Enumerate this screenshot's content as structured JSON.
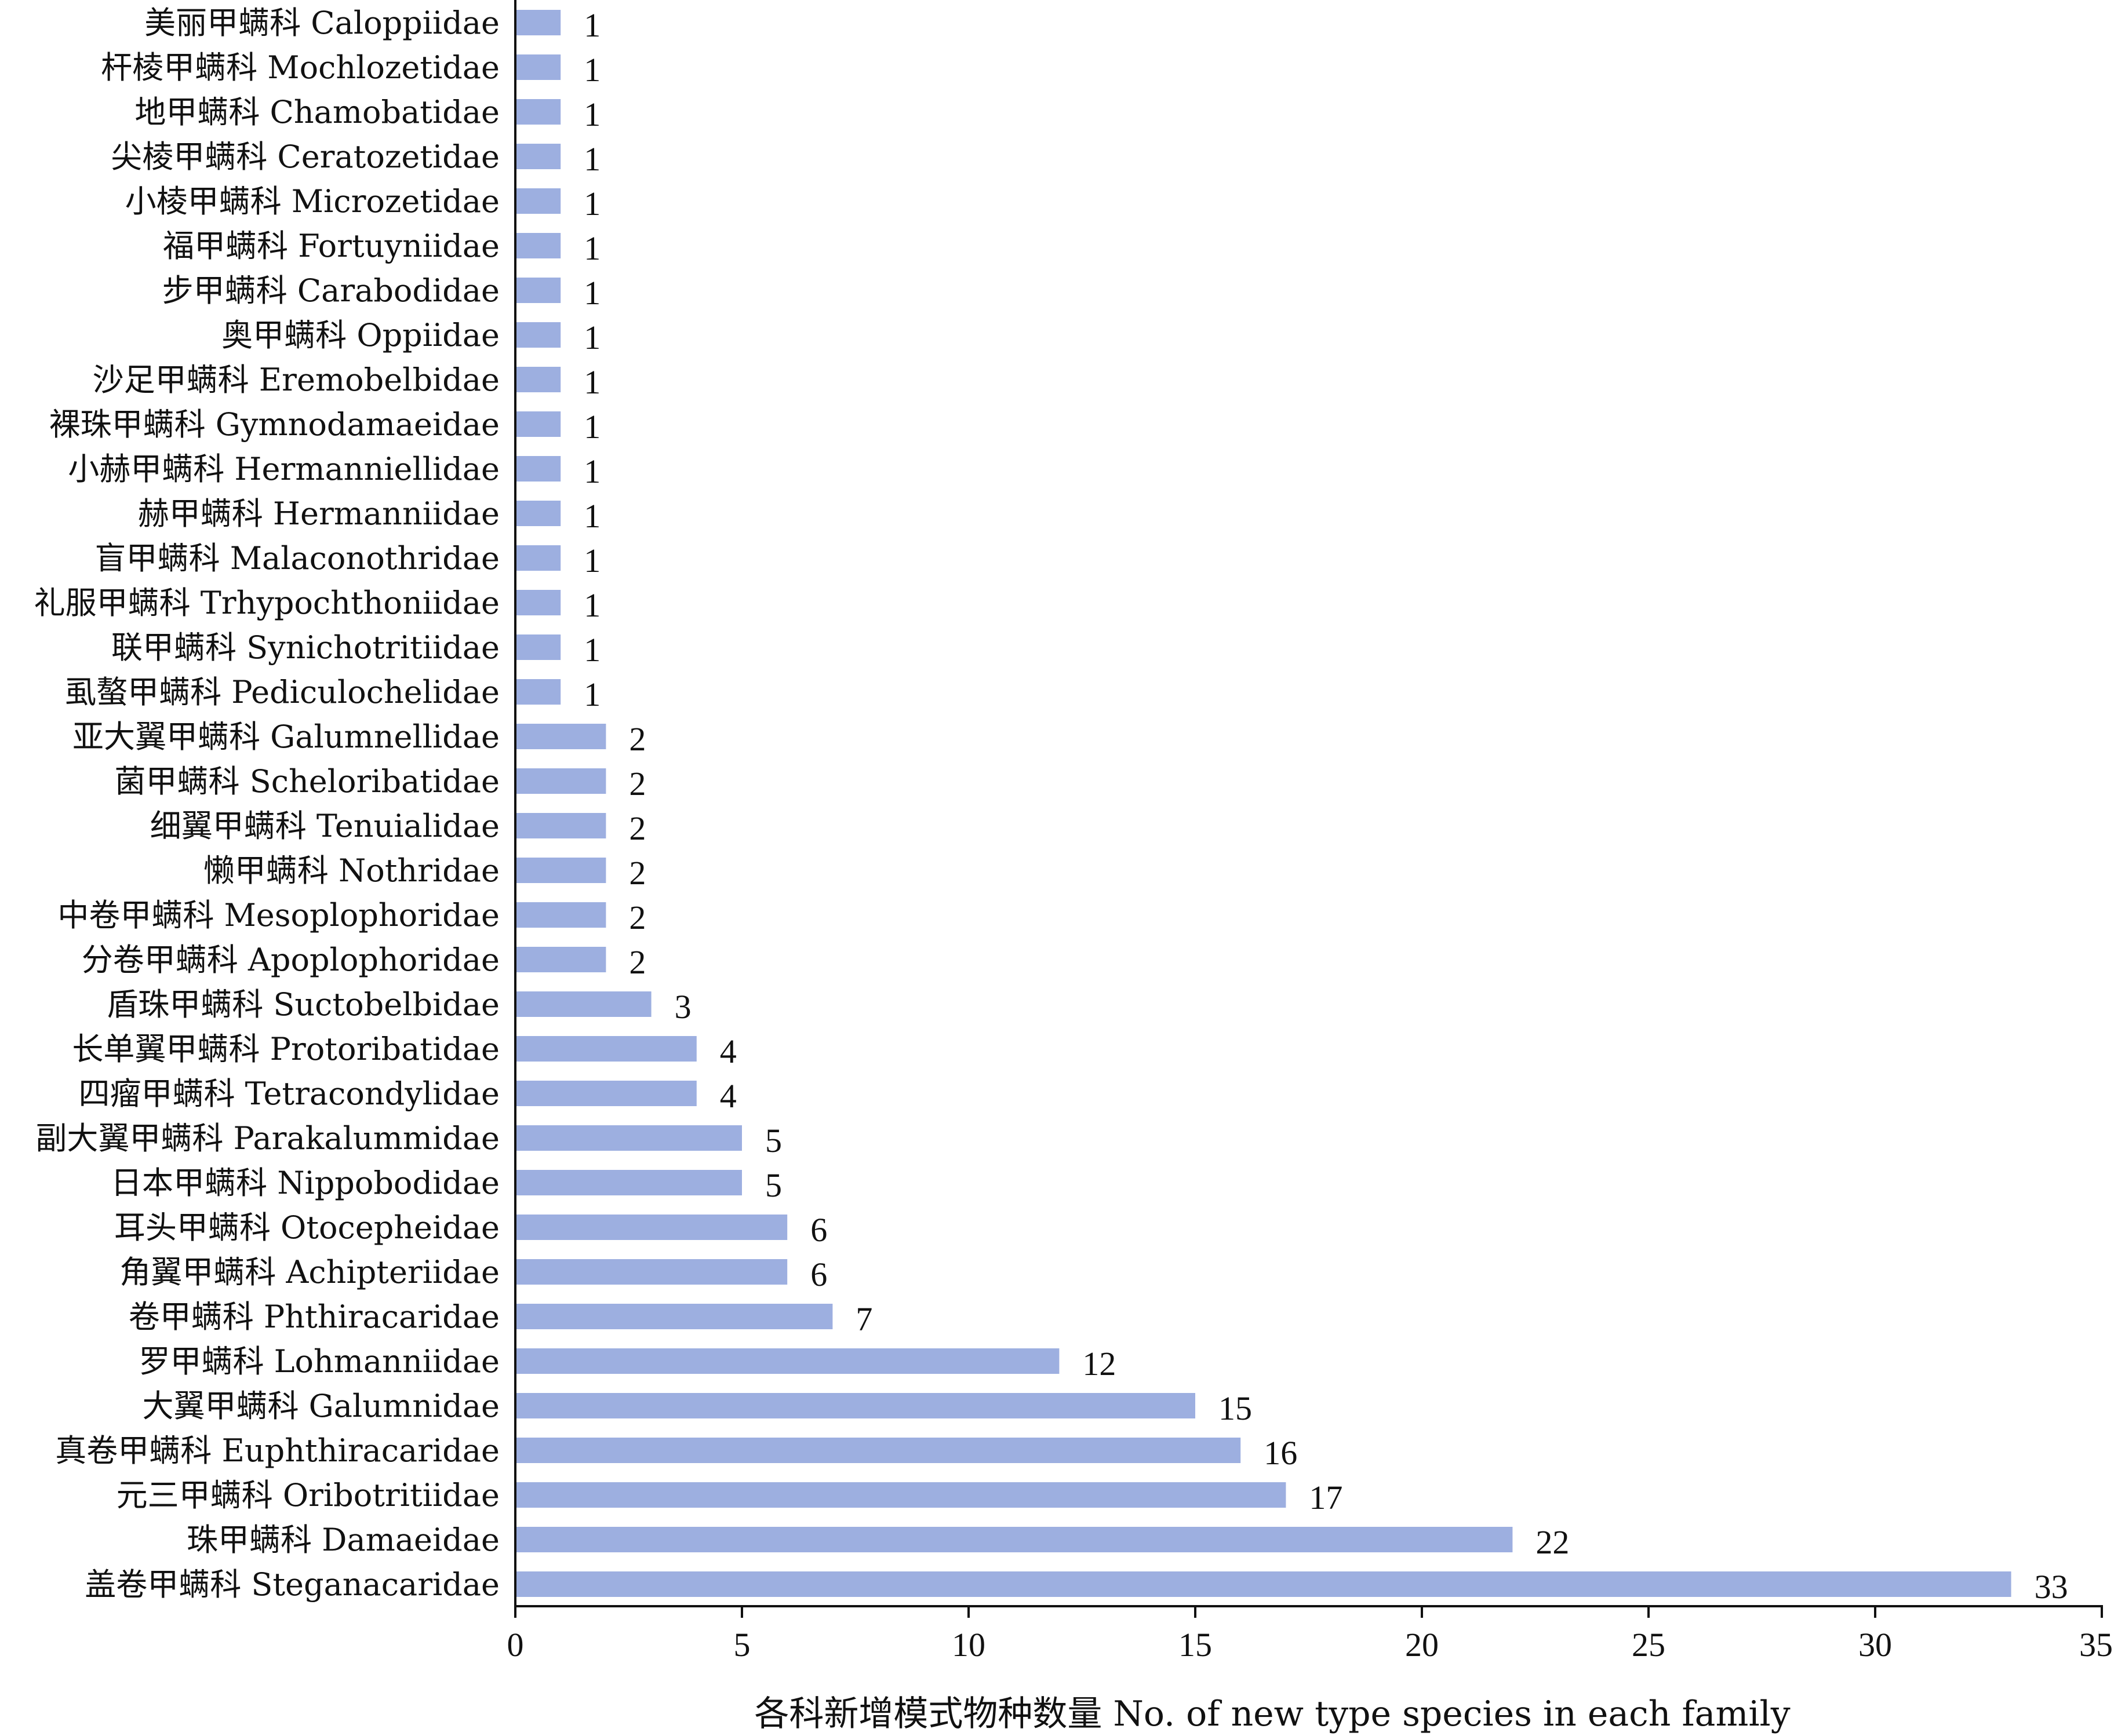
{
  "chart_data": {
    "type": "bar",
    "orientation": "horizontal",
    "categories": [
      "美丽甲螨科 Caloppiidae",
      "杆棱甲螨科  Mochlozetidae",
      "地甲螨科 Chamobatidae",
      "尖棱甲螨科 Ceratozetidae",
      "小棱甲螨科 Microzetidae",
      "福甲螨科 Fortuyniidae",
      "步甲螨科 Carabodidae",
      "奥甲螨科 Oppiidae",
      "沙足甲螨科 Eremobelbidae",
      "裸珠甲螨科 Gymnodamaeidae",
      "小赫甲螨科 Hermanniellidae",
      "赫甲螨科 Hermanniidae",
      "盲甲螨科 Malaconothridae",
      "礼服甲螨科 Trhypochthoniidae",
      "联甲螨科 Synichotritiidae",
      "虱螯甲螨科 Pediculochelidae",
      "亚大翼甲螨科 Galumnellidae",
      "菌甲螨科 Scheloribatidae",
      "细翼甲螨科 Tenuialidae",
      "懒甲螨科 Nothridae",
      "中卷甲螨科 Mesoplophoridae",
      "分卷甲螨科 Apoplophoridae",
      "盾珠甲螨科 Suctobelbidae",
      "长单翼甲螨科 Protoribatidae",
      "四瘤甲螨科 Tetracondylidae",
      "副大翼甲螨科 Parakalummidae",
      "日本甲螨科 Nippobodidae",
      "耳头甲螨科 Otocepheidae",
      "角翼甲螨科 Achipteriidae",
      "卷甲螨科 Phthiracaridae",
      "罗甲螨科 Lohmanniidae",
      "大翼甲螨科 Galumnidae",
      "真卷甲螨科 Euphthiracaridae",
      "元三甲螨科 Oribotritiidae",
      "珠甲螨科 Damaeidae",
      "盖卷甲螨科 Steganacaridae"
    ],
    "values": [
      1,
      1,
      1,
      1,
      1,
      1,
      1,
      1,
      1,
      1,
      1,
      1,
      1,
      1,
      1,
      1,
      2,
      2,
      2,
      2,
      2,
      2,
      3,
      4,
      4,
      5,
      5,
      6,
      6,
      7,
      12,
      15,
      16,
      17,
      22,
      33
    ],
    "value_labels": [
      "1",
      "1",
      "1",
      "1",
      "1",
      "1",
      "1",
      "1",
      "1",
      "1",
      "1",
      "1",
      "1",
      "1",
      "1",
      "1",
      "2",
      "2",
      "2",
      "2",
      "2",
      "2",
      "3",
      "4",
      "4",
      "5",
      "5",
      "6",
      "6",
      "7",
      "12",
      "15",
      "16",
      "17",
      "22",
      "33"
    ],
    "xlim": [
      0,
      35
    ],
    "xticks": [
      "0",
      "5",
      "10",
      "15",
      "20",
      "25",
      "30",
      "35"
    ],
    "xlabel": "各科新增模式物种数量 No. of new type species in each family",
    "title": "",
    "bar_color": "#9dafe0",
    "grid": false,
    "legend": "none"
  }
}
